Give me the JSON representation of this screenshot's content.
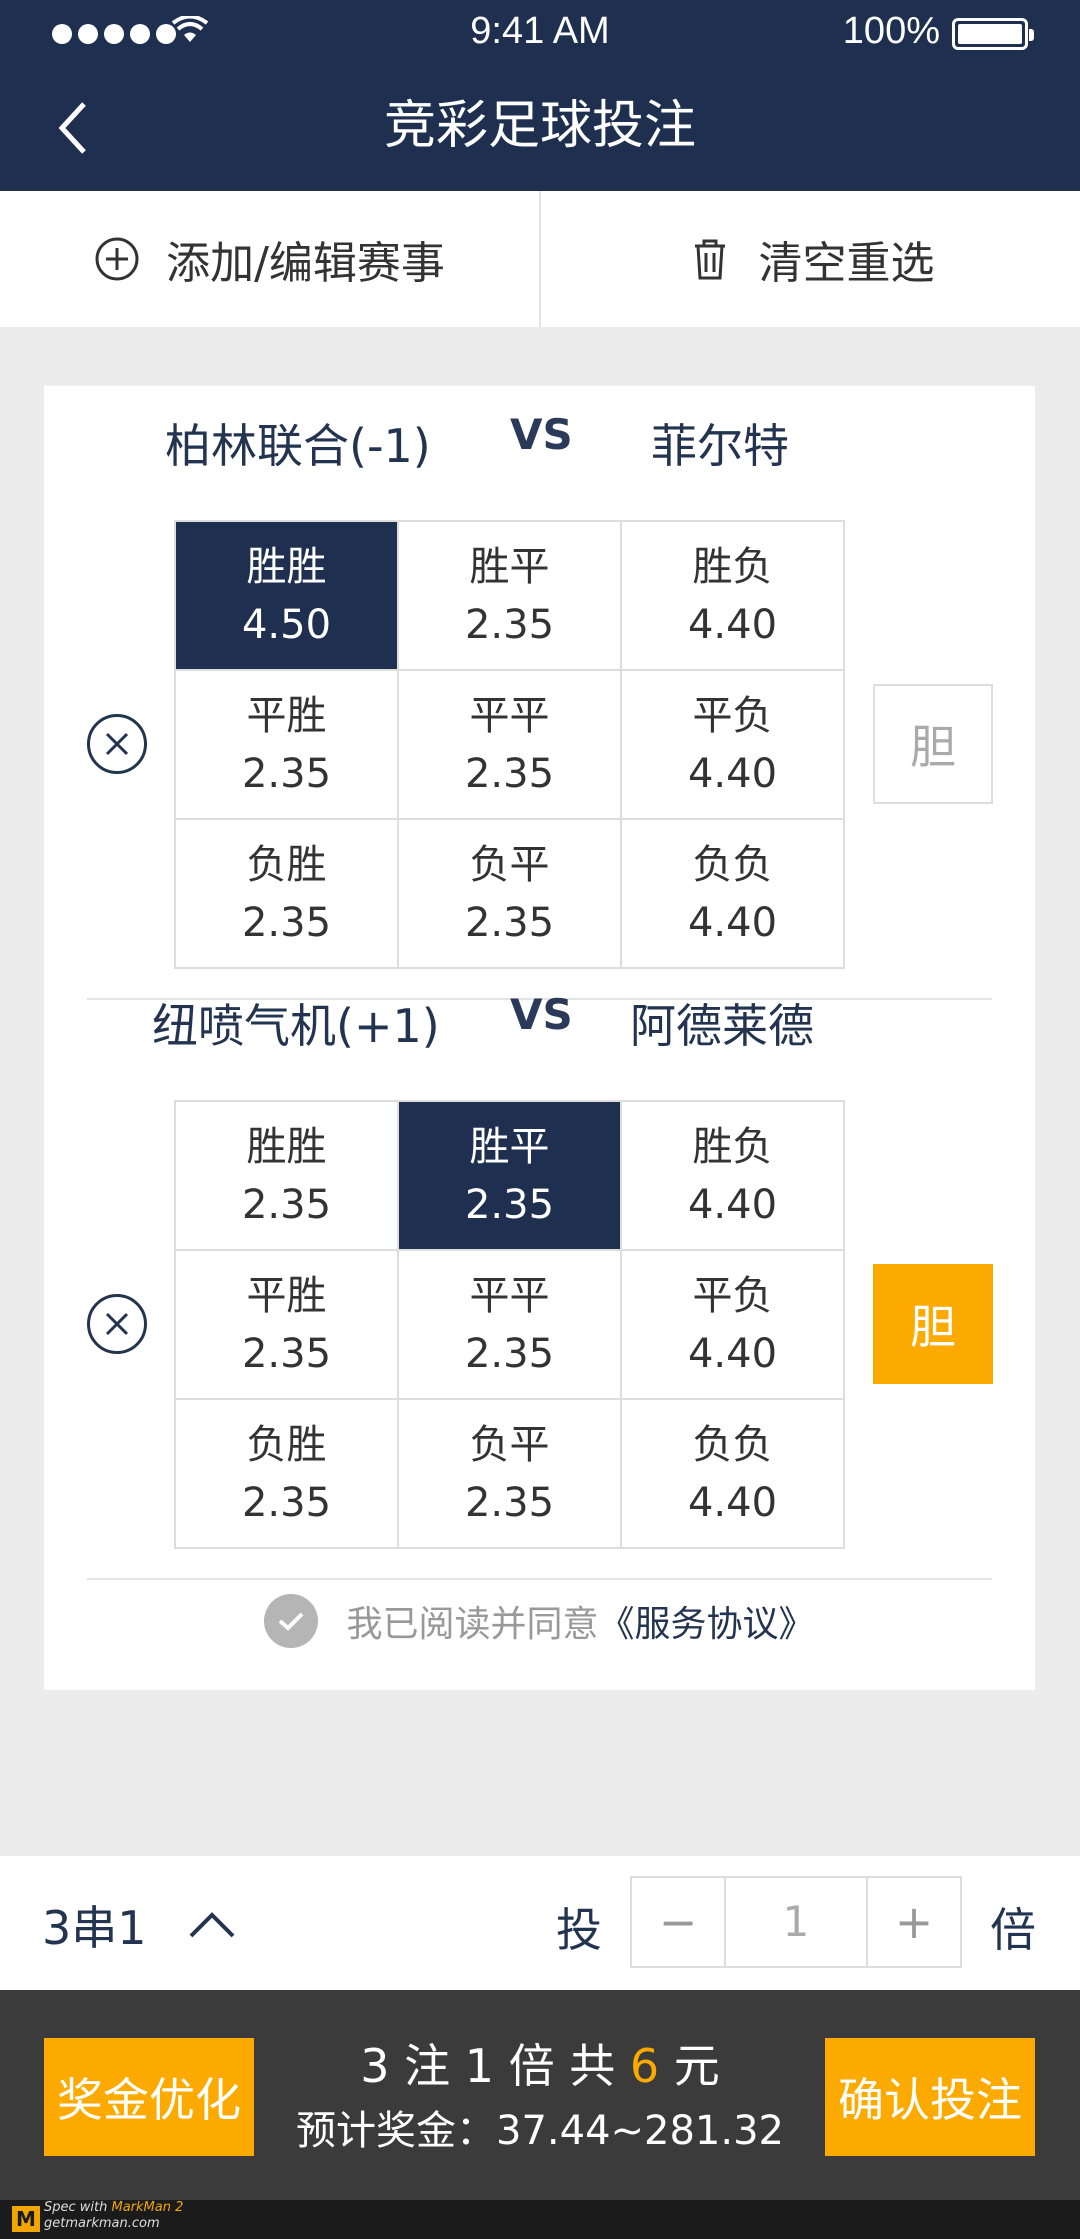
{
  "status": {
    "time": "9:41 AM",
    "battery": "100%",
    "wifi_icon": "◝"
  },
  "nav": {
    "title": "竞彩足球投注"
  },
  "toolbar": {
    "add_label": "添加/编辑赛事",
    "clear_label": "清空重选"
  },
  "matches": [
    {
      "home": "柏林联合(-1)",
      "vs": "VS",
      "away": "菲尔特",
      "dan": "胆",
      "dan_selected": false,
      "options": [
        {
          "label": "胜胜",
          "odds": "4.50",
          "selected": true
        },
        {
          "label": "胜平",
          "odds": "2.35",
          "selected": false
        },
        {
          "label": "胜负",
          "odds": "4.40",
          "selected": false
        },
        {
          "label": "平胜",
          "odds": "2.35",
          "selected": false
        },
        {
          "label": "平平",
          "odds": "2.35",
          "selected": false
        },
        {
          "label": "平负",
          "odds": "4.40",
          "selected": false
        },
        {
          "label": "负胜",
          "odds": "2.35",
          "selected": false
        },
        {
          "label": "负平",
          "odds": "2.35",
          "selected": false
        },
        {
          "label": "负负",
          "odds": "4.40",
          "selected": false
        }
      ]
    },
    {
      "home": "纽喷气机(+1)",
      "vs": "VS",
      "away": "阿德莱德",
      "dan": "胆",
      "dan_selected": true,
      "options": [
        {
          "label": "胜胜",
          "odds": "2.35",
          "selected": false
        },
        {
          "label": "胜平",
          "odds": "2.35",
          "selected": true
        },
        {
          "label": "胜负",
          "odds": "4.40",
          "selected": false
        },
        {
          "label": "平胜",
          "odds": "2.35",
          "selected": false
        },
        {
          "label": "平平",
          "odds": "2.35",
          "selected": false
        },
        {
          "label": "平负",
          "odds": "4.40",
          "selected": false
        },
        {
          "label": "负胜",
          "odds": "2.35",
          "selected": false
        },
        {
          "label": "负平",
          "odds": "2.35",
          "selected": false
        },
        {
          "label": "负负",
          "odds": "4.40",
          "selected": false
        }
      ]
    }
  ],
  "agreement": {
    "text": "我已阅读并同意",
    "link": "《服务协议》",
    "checked": true
  },
  "betbar": {
    "combo": "3串1",
    "tou": "投",
    "minus": "−",
    "quantity": "1",
    "plus": "+",
    "bei": "倍"
  },
  "footer": {
    "optimize_label": "奖金优化",
    "summary_prefix": "3 注 1 倍  共 ",
    "summary_amount": "6",
    "summary_suffix": " 元",
    "prize_label": "预计奖金：",
    "prize_value": "37.44~281.32",
    "confirm_label": "确认投注"
  },
  "markman": {
    "prefix": "Spec with ",
    "brand": "MarkMan 2",
    "site": "getmarkman.com",
    "logo": "M"
  },
  "colors": {
    "navy": "#1e2f4f",
    "accent": "#fdaa00",
    "footer": "#3b3b3b"
  }
}
